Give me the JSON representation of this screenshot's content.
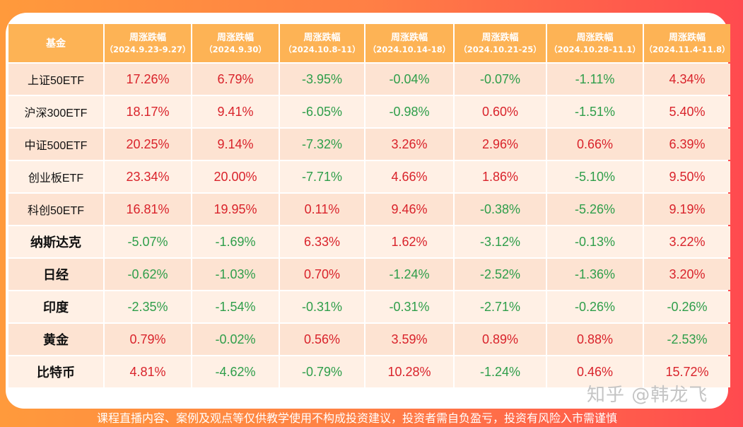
{
  "colors": {
    "up": "#d9232b",
    "down": "#2e9e4a",
    "header_bg": "#fdb355"
  },
  "table": {
    "fund_header": "基金",
    "columns": [
      {
        "title": "周涨跌幅",
        "period": "（2024.9.23-9.27）"
      },
      {
        "title": "周涨跌幅",
        "period": "（2024.9.30）"
      },
      {
        "title": "周涨跌幅",
        "period": "（2024.10.8-11）"
      },
      {
        "title": "周涨跌幅",
        "period": "（2024.10.14-18）"
      },
      {
        "title": "周涨跌幅",
        "period": "（2024.10.21-25）"
      },
      {
        "title": "周涨跌幅",
        "period": "（2024.10.28-11.1）"
      },
      {
        "title": "周涨跌幅",
        "period": "（2024.11.4-11.8）"
      }
    ],
    "rows": [
      {
        "name": "上证50ETF",
        "values": [
          "17.26%",
          "6.79%",
          "-3.95%",
          "-0.04%",
          "-0.07%",
          "-1.11%",
          "4.34%"
        ]
      },
      {
        "name": "沪深300ETF",
        "values": [
          "18.17%",
          "9.41%",
          "-6.05%",
          "-0.98%",
          "0.60%",
          "-1.51%",
          "5.40%"
        ]
      },
      {
        "name": "中证500ETF",
        "values": [
          "20.25%",
          "9.14%",
          "-7.32%",
          "3.26%",
          "2.96%",
          "0.66%",
          "6.39%"
        ]
      },
      {
        "name": "创业板ETF",
        "values": [
          "23.34%",
          "20.00%",
          "-7.71%",
          "4.66%",
          "1.86%",
          "-5.10%",
          "9.50%"
        ]
      },
      {
        "name": "科创50ETF",
        "values": [
          "16.81%",
          "19.95%",
          "0.11%",
          "9.46%",
          "-0.38%",
          "-5.26%",
          "9.19%"
        ]
      },
      {
        "name": "纳斯达克",
        "values": [
          "-5.07%",
          "-1.69%",
          "6.33%",
          "1.62%",
          "-3.12%",
          "-0.13%",
          "3.22%"
        ]
      },
      {
        "name": "日经",
        "values": [
          "-0.62%",
          "-1.03%",
          "0.70%",
          "-1.24%",
          "-2.52%",
          "-1.36%",
          "3.20%"
        ]
      },
      {
        "name": "印度",
        "values": [
          "-2.35%",
          "-1.54%",
          "-0.31%",
          "-0.31%",
          "-2.71%",
          "-0.26%",
          "-0.26%"
        ]
      },
      {
        "name": "黄金",
        "values": [
          "0.79%",
          "-0.02%",
          "0.56%",
          "3.59%",
          "0.89%",
          "0.88%",
          "-2.53%"
        ]
      },
      {
        "name": "比特币",
        "values": [
          "4.81%",
          "-4.62%",
          "-0.79%",
          "10.28%",
          "-1.24%",
          "0.46%",
          "15.72%"
        ]
      }
    ]
  },
  "watermark": "知乎 @韩龙飞",
  "disclaimer": "课程直播内容、案例及观点等仅供教学使用不构成投资建议，投资者需自负盈亏，投资有风险入市需谨慎"
}
